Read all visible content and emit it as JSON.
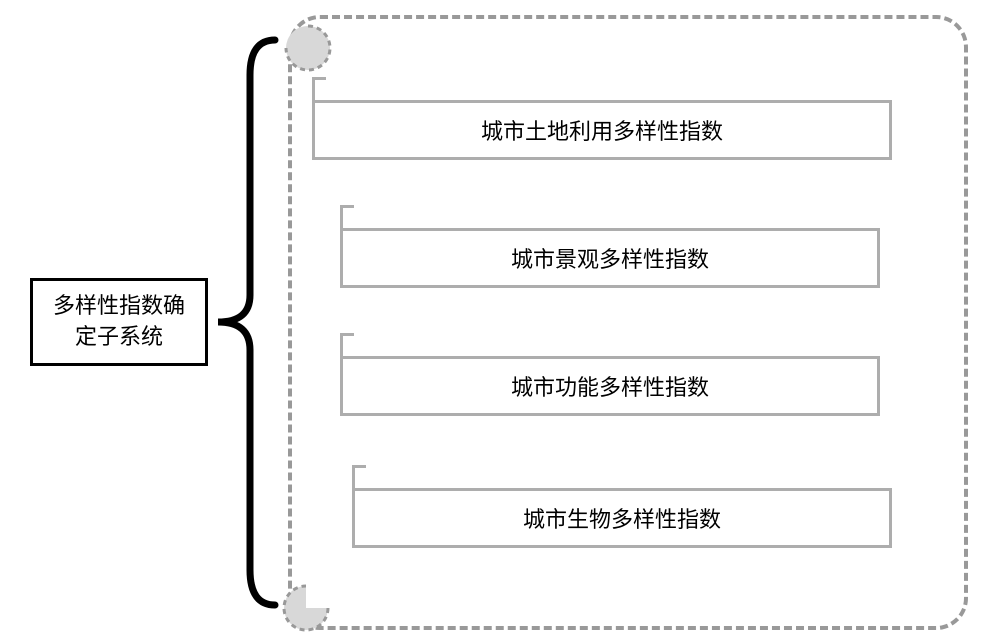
{
  "type": "tree",
  "root": {
    "label": "多样性指数确\n定子系统",
    "border_color": "#000000",
    "border_width": 3,
    "background_color": "#ffffff",
    "font_size": 22
  },
  "children": [
    {
      "label": "城市土地利用多样性指数",
      "border_color": "#adadad",
      "font_size": 22
    },
    {
      "label": "城市景观多样性指数",
      "border_color": "#adadad",
      "font_size": 22
    },
    {
      "label": "城市功能多样性指数",
      "border_color": "#adadad",
      "font_size": 22
    },
    {
      "label": "城市生物多样性指数",
      "border_color": "#adadad",
      "font_size": 22
    }
  ],
  "container": {
    "border_style": "dashed",
    "border_color": "#999999",
    "border_width": 4,
    "border_radius": 32,
    "background_color": "#ffffff"
  },
  "corner_accent": {
    "fill_color": "#d8d8d8",
    "stroke_color": "#999999",
    "stroke_style": "dashed"
  },
  "bracket": {
    "stroke_color": "#000000",
    "stroke_width": 7
  },
  "colors": {
    "text": "#333333",
    "item_border": "#adadad",
    "root_border": "#000000",
    "dashed_border": "#999999",
    "accent_fill": "#d8d8d8"
  }
}
